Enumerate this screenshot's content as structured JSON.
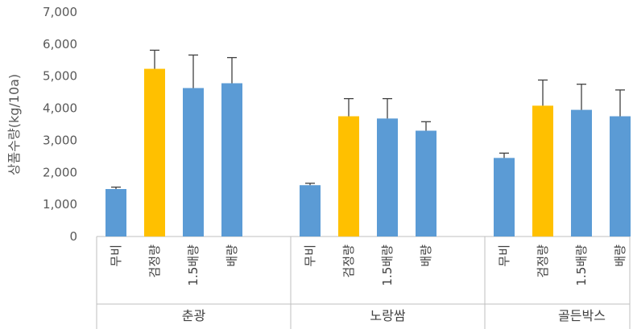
{
  "chart_data": {
    "type": "bar",
    "title": "",
    "ylabel": "상품수량(kg/10a)",
    "ylim": [
      0,
      7000
    ],
    "yticks": [
      "0",
      "1,000",
      "2,000",
      "3,000",
      "4,000",
      "5,000",
      "6,000",
      "7,000"
    ],
    "grid": false,
    "legend": "none",
    "colors": {
      "default": "#5B9BD5",
      "highlight": "#FFC000",
      "error_bar": "#404040",
      "axis": "#BFBFBF"
    },
    "groups": [
      {
        "name": "춘광",
        "categories": [
          "무비",
          "검정량",
          "1.5배량",
          "배량"
        ],
        "values": [
          1480,
          5230,
          4630,
          4780
        ],
        "errors": [
          60,
          580,
          1030,
          800
        ],
        "highlight": [
          false,
          true,
          false,
          false
        ]
      },
      {
        "name": "노랑쌈",
        "categories": [
          "무비",
          "검정량",
          "1.5배량",
          "배량"
        ],
        "values": [
          1600,
          3750,
          3680,
          3300
        ],
        "errors": [
          60,
          550,
          620,
          280
        ],
        "highlight": [
          false,
          true,
          false,
          false
        ]
      },
      {
        "name": "골든박스",
        "categories": [
          "무비",
          "검정량",
          "1.5배량",
          "배량"
        ],
        "values": [
          2450,
          4080,
          3950,
          3750
        ],
        "errors": [
          150,
          800,
          800,
          820
        ],
        "highlight": [
          false,
          true,
          false,
          false
        ]
      }
    ]
  }
}
